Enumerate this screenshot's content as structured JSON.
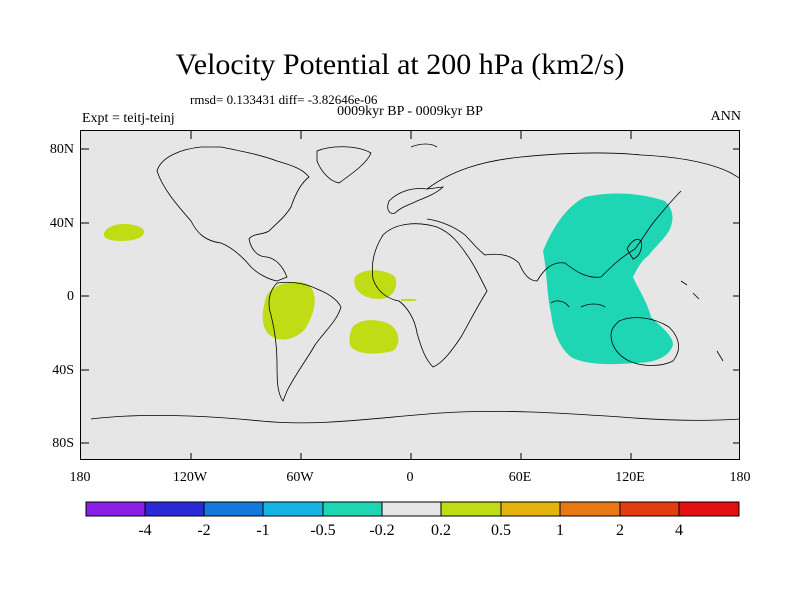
{
  "title": "Velocity Potential at 200 hPa (km2/s)",
  "stats": "rmsd= 0.133431 diff= -3.82646e-06",
  "period": "0009kyr BP - 0009kyr BP",
  "experiment": "Expt = teitj-teinj",
  "season": "ANN",
  "map": {
    "lat_ticks": [
      "80N",
      "40N",
      "0",
      "40S",
      "80S"
    ],
    "lon_ticks": [
      "180",
      "120W",
      "60W",
      "0",
      "60E",
      "120E",
      "180"
    ],
    "background_color": "#e6e6e6",
    "regions": [
      {
        "name": "central-pacific-positive",
        "lon": -160,
        "lat": 35,
        "color": "#c0dc14"
      },
      {
        "name": "amazon-positive",
        "lon": -55,
        "lat": 0,
        "color": "#c0dc14"
      },
      {
        "name": "tropical-atlantic-positive",
        "lon": -20,
        "lat": 10,
        "color": "#c0dc14"
      },
      {
        "name": "south-atlantic-positive",
        "lon": -25,
        "lat": -25,
        "color": "#c0dc14"
      },
      {
        "name": "indo-pacific-negative",
        "lon": 105,
        "lat": 10,
        "color": "#1ed6b4"
      }
    ]
  },
  "colorbar": {
    "labels": [
      "-4",
      "-2",
      "-1",
      "-0.5",
      "-0.2",
      "0.2",
      "0.5",
      "1",
      "2",
      "4"
    ],
    "colors": [
      "#8a20e8",
      "#2a2ad8",
      "#1478dc",
      "#14b4e4",
      "#1ed6b4",
      "#e6e6e6",
      "#c0dc14",
      "#e4b40c",
      "#e87814",
      "#e43c10",
      "#e41010"
    ]
  }
}
